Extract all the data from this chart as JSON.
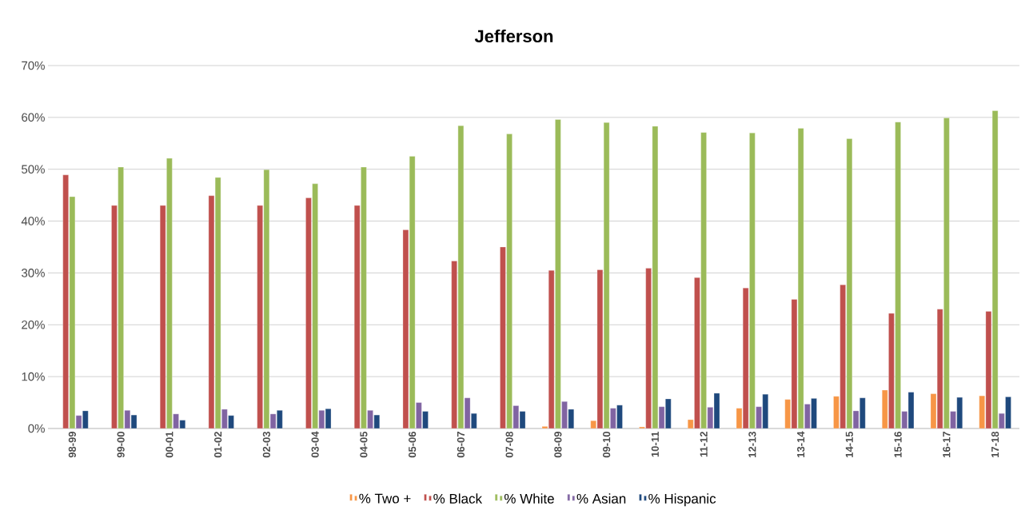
{
  "chart_data": {
    "type": "bar",
    "title": "Jefferson",
    "categories": [
      "98-99",
      "99-00",
      "00-01",
      "01-02",
      "02-03",
      "03-04",
      "04-05",
      "05-06",
      "06-07",
      "07-08",
      "08-09",
      "09-10",
      "10-11",
      "11-12",
      "12-13",
      "13-14",
      "14-15",
      "15-16",
      "16-17",
      "17-18"
    ],
    "series": [
      {
        "name": "% Two +",
        "color": "#f79646",
        "values": [
          null,
          null,
          null,
          null,
          null,
          null,
          null,
          null,
          null,
          null,
          0.4,
          1.5,
          0.3,
          1.7,
          3.9,
          5.6,
          6.2,
          7.4,
          6.7,
          6.3
        ]
      },
      {
        "name": "% Black",
        "color": "#c0504d",
        "values": [
          48.9,
          43.0,
          43.0,
          44.9,
          43.0,
          44.5,
          43.0,
          38.3,
          32.3,
          35.0,
          30.5,
          30.6,
          30.9,
          29.1,
          27.1,
          24.9,
          27.7,
          22.2,
          23.0,
          22.6
        ]
      },
      {
        "name": "% White",
        "color": "#9bbb59",
        "values": [
          44.7,
          50.4,
          52.1,
          48.4,
          49.9,
          47.2,
          50.4,
          52.5,
          58.4,
          56.8,
          59.6,
          59.0,
          58.3,
          57.1,
          57.0,
          57.9,
          55.9,
          59.1,
          59.9,
          61.3
        ]
      },
      {
        "name": "% Asian",
        "color": "#8064a2",
        "values": [
          2.5,
          3.5,
          2.8,
          3.7,
          2.8,
          3.5,
          3.5,
          5.0,
          5.9,
          4.4,
          5.2,
          3.9,
          4.2,
          4.1,
          4.2,
          4.7,
          3.4,
          3.3,
          3.3,
          2.9
        ]
      },
      {
        "name": "% Hispanic",
        "color": "#1f497d",
        "values": [
          3.4,
          2.6,
          1.6,
          2.5,
          3.5,
          3.8,
          2.6,
          3.3,
          2.9,
          3.3,
          3.7,
          4.5,
          5.7,
          6.8,
          6.6,
          5.8,
          5.9,
          7.0,
          6.0,
          6.1
        ]
      }
    ],
    "ylim": [
      0,
      70
    ],
    "yticks": [
      {
        "value": 0,
        "label": "0%"
      },
      {
        "value": 10,
        "label": "10%"
      },
      {
        "value": 20,
        "label": "20%"
      },
      {
        "value": 30,
        "label": "30%"
      },
      {
        "value": 40,
        "label": "40%"
      },
      {
        "value": 50,
        "label": "50%"
      },
      {
        "value": 60,
        "label": "60%"
      },
      {
        "value": 70,
        "label": "70%"
      }
    ],
    "grid": "y",
    "legend": "bottom"
  }
}
